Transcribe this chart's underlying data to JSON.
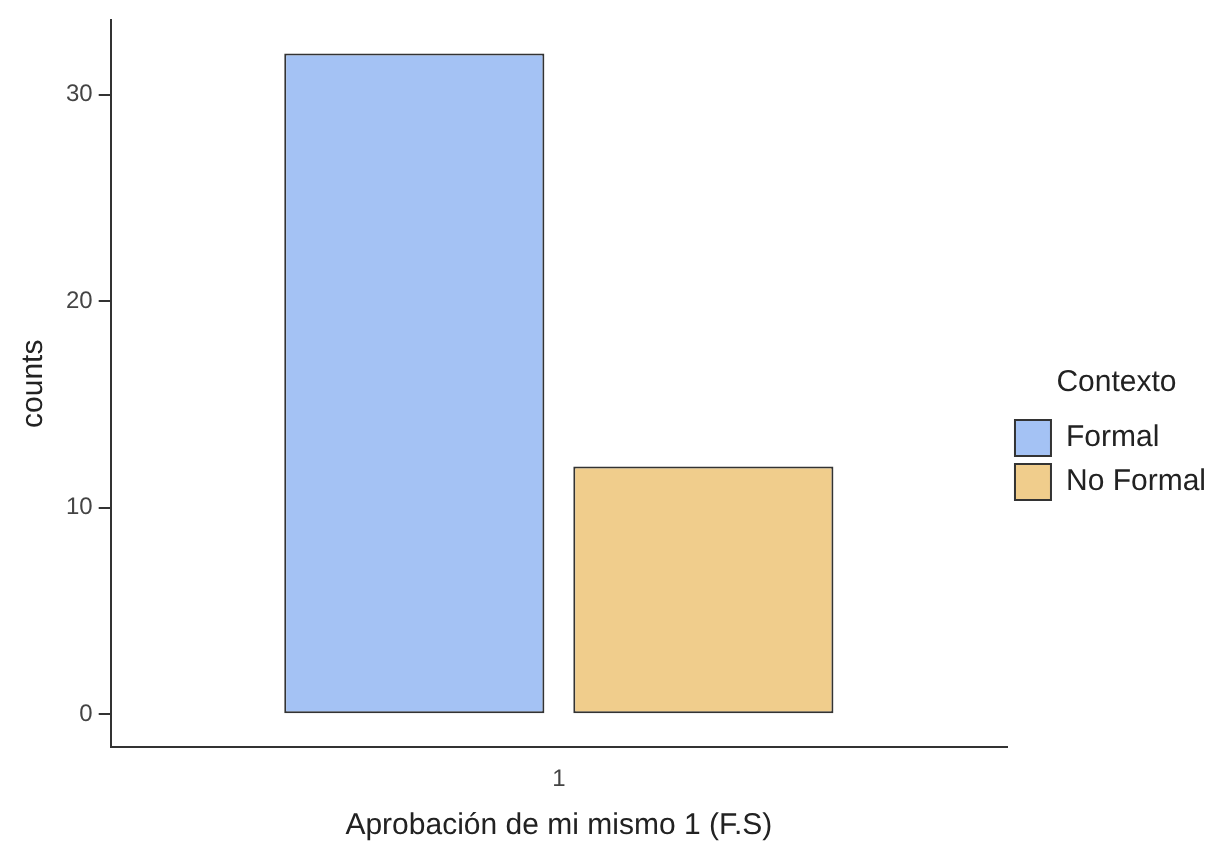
{
  "chart_data": {
    "type": "bar",
    "xlabel": "Aprobación de mi mismo 1 (F.S)",
    "ylabel": "counts",
    "legend_title": "Contexto",
    "legend": "right",
    "grid": false,
    "categories": [
      "1"
    ],
    "series": [
      {
        "name": "Formal",
        "color": "#a4c2f4",
        "values": [
          32
        ]
      },
      {
        "name": "No Formal",
        "color": "#f0cd8c",
        "values": [
          12
        ]
      }
    ],
    "ylim": [
      -1.6,
      33.6
    ],
    "yticks": [
      0,
      10,
      20,
      30
    ]
  }
}
